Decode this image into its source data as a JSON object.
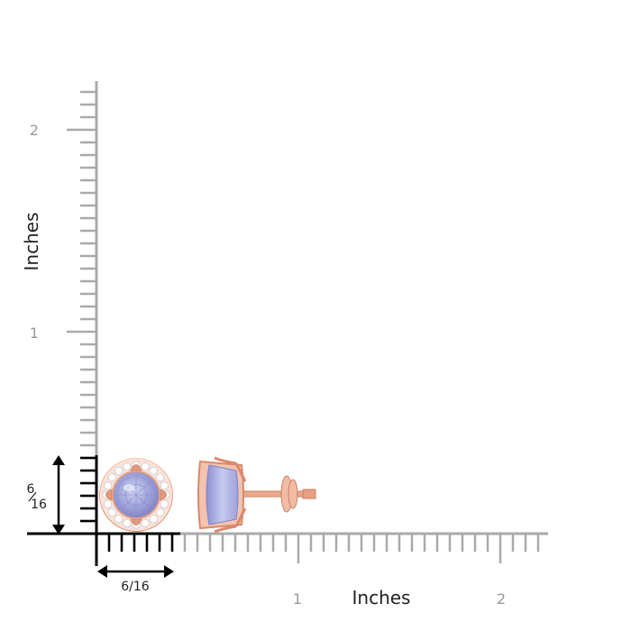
{
  "y_axis": {
    "title": "Inches",
    "ticks": [
      "2",
      "1"
    ]
  },
  "x_axis": {
    "title": "Inches",
    "ticks": [
      "1",
      "2"
    ]
  },
  "size_indicator": {
    "vertical": {
      "numerator": "6",
      "denominator": "16"
    },
    "horizontal": "6/16"
  },
  "product": {
    "description_icons": [
      "earring-front-view-icon",
      "earring-side-view-icon"
    ]
  },
  "colors": {
    "ruler_gray": "#aaaaaa",
    "ruler_black": "#000000",
    "label_gray": "#999999",
    "metal_rose_gold": "#e8a088",
    "gemstone_tanzanite": "#a3a8dc"
  }
}
